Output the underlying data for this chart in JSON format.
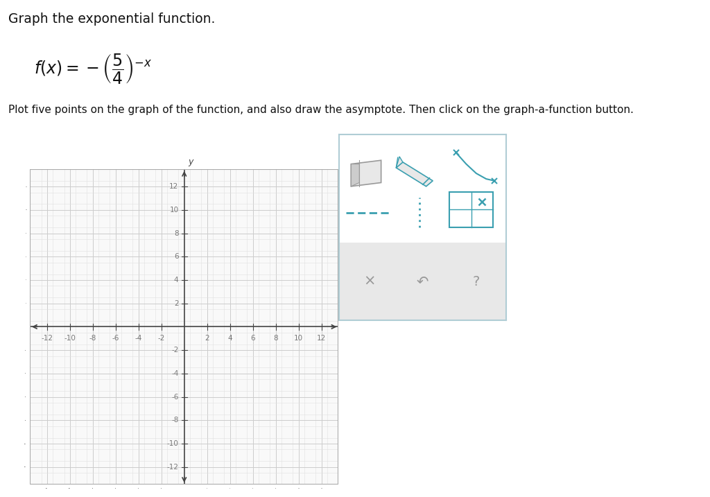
{
  "title_text": "Graph the exponential function.",
  "subtitle_text": "Plot five points on the graph of the function, and also draw the asymptote. Then click on the graph-a-function button.",
  "xlim": [
    -13.5,
    13.5
  ],
  "ylim": [
    -13.5,
    13.5
  ],
  "xticks": [
    -12,
    -10,
    -8,
    -6,
    -4,
    -2,
    2,
    4,
    6,
    8,
    10,
    12
  ],
  "yticks": [
    -12,
    -10,
    -8,
    -6,
    -4,
    -2,
    2,
    4,
    6,
    8,
    10,
    12
  ],
  "minor_step": 1,
  "grid_minor_color": "#e0e0e0",
  "grid_major_color": "#cccccc",
  "axis_color": "#444444",
  "bg_color": "#ffffff",
  "tick_label_color": "#777777",
  "title_color": "#111111",
  "teal": "#3a9fb0",
  "gray_icon": "#999999",
  "panel_border": "#b0cdd5",
  "panel_bg": "#ffffff",
  "gray_bar_bg": "#e8e8e8"
}
